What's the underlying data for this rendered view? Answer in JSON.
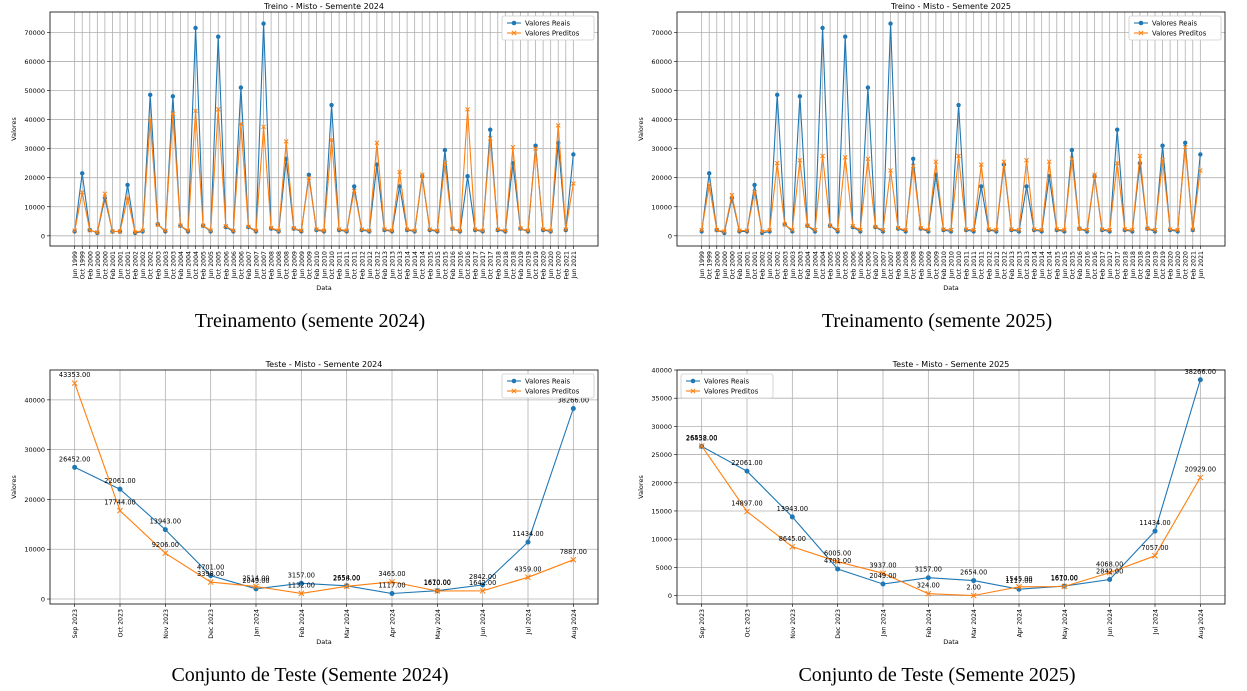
{
  "colors": {
    "real": "#1f77b4",
    "pred": "#ff7f0e",
    "grid": "#b0b0b0"
  },
  "captions": [
    "Treinamento (semente 2024)",
    "Treinamento (semente 2025)",
    "Conjunto de Teste (Semente 2024)",
    "Conjunto de Teste (Semente 2025)"
  ],
  "chart_data": [
    {
      "type": "line",
      "title": "Treino - Misto - Semente 2024",
      "xlabel": "Data",
      "ylabel": "Valores",
      "ylim": [
        -3500,
        77000
      ],
      "yticks": [
        0,
        10000,
        20000,
        30000,
        40000,
        50000,
        60000,
        70000
      ],
      "legend": "top-right",
      "grid": true,
      "x": [
        "Jun 1999",
        "Oct 1999",
        "Feb 2000",
        "Jun 2000",
        "Oct 2000",
        "Feb 2001",
        "Jun 2001",
        "Oct 2001",
        "Feb 2002",
        "Jun 2002",
        "Oct 2002",
        "Feb 2003",
        "Jun 2003",
        "Oct 2003",
        "Feb 2004",
        "Jun 2004",
        "Oct 2004",
        "Feb 2005",
        "Jun 2005",
        "Oct 2005",
        "Feb 2006",
        "Jun 2006",
        "Oct 2006",
        "Feb 2007",
        "Jun 2007",
        "Oct 2007",
        "Feb 2008",
        "Jun 2008",
        "Oct 2008",
        "Feb 2009",
        "Jun 2009",
        "Oct 2009",
        "Feb 2010",
        "Jun 2010",
        "Oct 2010",
        "Feb 2011",
        "Jun 2011",
        "Oct 2011",
        "Feb 2012",
        "Jun 2012",
        "Oct 2012",
        "Feb 2013",
        "Jun 2013",
        "Oct 2013",
        "Feb 2014",
        "Jun 2014",
        "Oct 2014",
        "Feb 2015",
        "Jun 2015",
        "Oct 2015",
        "Feb 2016",
        "Jun 2016",
        "Oct 2016",
        "Feb 2017",
        "Jun 2017",
        "Oct 2017",
        "Feb 2018",
        "Jun 2018",
        "Oct 2018",
        "Feb 2019",
        "Jun 2019",
        "Oct 2019",
        "Feb 2020",
        "Jun 2020",
        "Oct 2020",
        "Feb 2021",
        "Jun 2021"
      ],
      "series": [
        {
          "name": "Valores Reais",
          "values": [
            1500,
            21500,
            2000,
            1000,
            13000,
            1500,
            1500,
            17500,
            1000,
            1500,
            48500,
            4000,
            1500,
            48000,
            3500,
            1500,
            71500,
            3500,
            1500,
            68500,
            3000,
            1500,
            51000,
            3000,
            1500,
            73000,
            2500,
            1500,
            26500,
            2500,
            1500,
            21000,
            2000,
            1500,
            45000,
            2000,
            1500,
            17000,
            2000,
            1500,
            24500,
            2000,
            1500,
            17000,
            2000,
            1500,
            20500,
            2000,
            1500,
            29500,
            2500,
            1500,
            20500,
            2000,
            1500,
            36500,
            2000,
            1500,
            25000,
            2500,
            1500,
            31000,
            2000,
            1500,
            32000,
            2000,
            28000
          ]
        },
        {
          "name": "Valores Preditos",
          "values": [
            1800,
            15000,
            1900,
            1200,
            14500,
            1500,
            1500,
            13000,
            1200,
            1800,
            40000,
            3800,
            1800,
            42000,
            3500,
            1800,
            43000,
            3500,
            1800,
            43500,
            3300,
            1800,
            38500,
            3100,
            1800,
            37500,
            2700,
            1800,
            32500,
            2600,
            1800,
            20000,
            2200,
            1800,
            33000,
            2200,
            1800,
            15500,
            2200,
            1800,
            32000,
            2200,
            1800,
            22000,
            2200,
            1800,
            21000,
            2200,
            1800,
            25000,
            2400,
            1800,
            43500,
            2200,
            1800,
            33500,
            2200,
            1800,
            30500,
            2500,
            1800,
            30000,
            2200,
            1800,
            38000,
            2200,
            18000
          ]
        }
      ]
    },
    {
      "type": "line",
      "title": "Treino - Misto - Semente 2025",
      "xlabel": "Data",
      "ylabel": "Valores",
      "ylim": [
        -3500,
        77000
      ],
      "yticks": [
        0,
        10000,
        20000,
        30000,
        40000,
        50000,
        60000,
        70000
      ],
      "legend": "top-right",
      "grid": true,
      "x": [
        "Jun 1999",
        "Oct 1999",
        "Feb 2000",
        "Jun 2000",
        "Oct 2000",
        "Feb 2001",
        "Jun 2001",
        "Oct 2001",
        "Feb 2002",
        "Jun 2002",
        "Oct 2002",
        "Feb 2003",
        "Jun 2003",
        "Oct 2003",
        "Feb 2004",
        "Jun 2004",
        "Oct 2004",
        "Feb 2005",
        "Jun 2005",
        "Oct 2005",
        "Feb 2006",
        "Jun 2006",
        "Oct 2006",
        "Feb 2007",
        "Jun 2007",
        "Oct 2007",
        "Feb 2008",
        "Jun 2008",
        "Oct 2008",
        "Feb 2009",
        "Jun 2009",
        "Oct 2009",
        "Feb 2010",
        "Jun 2010",
        "Oct 2010",
        "Feb 2011",
        "Jun 2011",
        "Oct 2011",
        "Feb 2012",
        "Jun 2012",
        "Oct 2012",
        "Feb 2013",
        "Jun 2013",
        "Oct 2013",
        "Feb 2014",
        "Jun 2014",
        "Oct 2014",
        "Feb 2015",
        "Jun 2015",
        "Oct 2015",
        "Feb 2016",
        "Jun 2016",
        "Oct 2016",
        "Feb 2017",
        "Jun 2017",
        "Oct 2017",
        "Feb 2018",
        "Jun 2018",
        "Oct 2018",
        "Feb 2019",
        "Jun 2019",
        "Oct 2019",
        "Feb 2020",
        "Jun 2020",
        "Oct 2020",
        "Feb 2021",
        "Jun 2021"
      ],
      "series": [
        {
          "name": "Valores Reais",
          "values": [
            1500,
            21500,
            2000,
            1000,
            13000,
            1500,
            1500,
            17500,
            1000,
            1500,
            48500,
            4000,
            1500,
            48000,
            3500,
            1500,
            71500,
            3500,
            1500,
            68500,
            3000,
            1500,
            51000,
            3000,
            1500,
            73000,
            2500,
            1500,
            26500,
            2500,
            1500,
            21000,
            2000,
            1500,
            45000,
            2000,
            1500,
            17000,
            2000,
            1500,
            24500,
            2000,
            1500,
            17000,
            2000,
            1500,
            20500,
            2000,
            1500,
            29500,
            2500,
            1500,
            20500,
            2000,
            1500,
            36500,
            2000,
            1500,
            25000,
            2500,
            1500,
            31000,
            2000,
            1500,
            32000,
            2000,
            28000
          ]
        },
        {
          "name": "Valores Preditos",
          "values": [
            2000,
            17500,
            2000,
            1500,
            14000,
            1800,
            1800,
            15000,
            1500,
            2000,
            25000,
            3800,
            2000,
            26000,
            3500,
            2000,
            27500,
            3500,
            2000,
            27000,
            3300,
            2000,
            26500,
            3100,
            2000,
            22500,
            2700,
            2000,
            24000,
            2600,
            2000,
            25500,
            2200,
            2000,
            27500,
            2200,
            2000,
            24500,
            2200,
            2000,
            25500,
            2200,
            2000,
            26000,
            2200,
            2000,
            25500,
            2200,
            2000,
            26500,
            2400,
            2000,
            21000,
            2200,
            2000,
            25000,
            2200,
            2000,
            27500,
            2500,
            2000,
            26000,
            2200,
            2000,
            30500,
            2200,
            22500
          ]
        }
      ]
    },
    {
      "type": "line",
      "title": "Teste - Misto - Semente 2024",
      "xlabel": "Data",
      "ylabel": "Valores",
      "ylim": [
        -1000,
        46000
      ],
      "yticks": [
        0,
        10000,
        20000,
        30000,
        40000
      ],
      "legend": "top-right",
      "grid": true,
      "x": [
        "Sep 2023",
        "Oct 2023",
        "Nov 2023",
        "Dec 2023",
        "Jan 2024",
        "Feb 2024",
        "Mar 2024",
        "Apr 2024",
        "May 2024",
        "Jun 2024",
        "Jul 2024",
        "Aug 2024"
      ],
      "series": [
        {
          "name": "Valores Reais",
          "values": [
            26452,
            22061,
            13943,
            4701,
            2049,
            3157,
            2654,
            1117,
            1670,
            2842,
            11434,
            38266
          ]
        },
        {
          "name": "Valores Preditos",
          "values": [
            43353,
            17744,
            9206,
            3398,
            2514,
            1132,
            2558,
            3465,
            1610,
            1642,
            4359,
            7887
          ]
        }
      ],
      "data_labels": {
        "real": [
          "26452.00",
          "22061.00",
          "13943.00",
          "4701.00",
          "2049.00",
          "3157.00",
          "2654.00",
          "1117.00",
          "1670.00",
          "2842.00",
          "11434.00",
          "38266.00"
        ],
        "pred": [
          "43353.00",
          "17744.00",
          "9206.00",
          "3398.00",
          "2514.00",
          "1132.00",
          "2558.00",
          "3465.00",
          "1610.00",
          "1642.00",
          "4359.00",
          "7887.00"
        ]
      }
    },
    {
      "type": "line",
      "title": "Teste - Misto - Semente 2025",
      "xlabel": "Data",
      "ylabel": "Valores",
      "ylim": [
        -1500,
        40000
      ],
      "yticks": [
        0,
        5000,
        10000,
        15000,
        20000,
        25000,
        30000,
        35000,
        40000
      ],
      "legend": "top-left",
      "grid": true,
      "x": [
        "Sep 2023",
        "Oct 2023",
        "Nov 2023",
        "Dec 2023",
        "Jan 2024",
        "Feb 2024",
        "Mar 2024",
        "Apr 2024",
        "May 2024",
        "Jun 2024",
        "Jul 2024",
        "Aug 2024"
      ],
      "series": [
        {
          "name": "Valores Reais",
          "values": [
            26452,
            22061,
            13943,
            4701,
            2049,
            3157,
            2654,
            1117,
            1670,
            2842,
            11434,
            38266
          ]
        },
        {
          "name": "Valores Preditos",
          "values": [
            26538,
            14897,
            8645,
            6005,
            3937,
            324,
            2,
            1545,
            1610,
            4068,
            7057,
            20929
          ]
        }
      ],
      "data_labels": {
        "real": [
          "26452.00",
          "22061.00",
          "13943.00",
          "4701.00",
          "2049.00",
          "3157.00",
          "2654.00",
          "1117.00",
          "1670.00",
          "2842.00",
          "11434.00",
          "38266.00"
        ],
        "pred": [
          "26538.00",
          "14897.00",
          "8645.00",
          "6005.00",
          "3937.00",
          "324.00",
          "2.00",
          "1545.00",
          "1610.00",
          "4068.00",
          "7057.00",
          "20929.00"
        ]
      }
    }
  ]
}
